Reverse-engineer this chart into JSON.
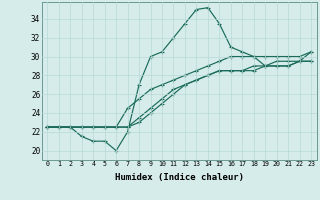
{
  "xlabel": "Humidex (Indice chaleur)",
  "bg_color": "#d5ecea",
  "line_color": "#1a6b5a",
  "grid_color": "#b8d8d5",
  "xlim": [
    -0.5,
    23.5
  ],
  "ylim": [
    19.0,
    35.8
  ],
  "xticks": [
    0,
    1,
    2,
    3,
    4,
    5,
    6,
    7,
    8,
    9,
    10,
    11,
    12,
    13,
    14,
    15,
    16,
    17,
    18,
    19,
    20,
    21,
    22,
    23
  ],
  "yticks": [
    20,
    22,
    24,
    26,
    28,
    30,
    32,
    34
  ],
  "x_vals": [
    0,
    1,
    2,
    3,
    4,
    5,
    6,
    7,
    8,
    9,
    10,
    11,
    12,
    13,
    14,
    15,
    16,
    17,
    18,
    19,
    20,
    21,
    22,
    23
  ],
  "y_line1": [
    22.5,
    22.5,
    22.5,
    21.5,
    21.0,
    21.0,
    20.0,
    22.0,
    27.0,
    30.0,
    30.5,
    32.0,
    33.5,
    35.0,
    35.2,
    33.5,
    31.0,
    30.5,
    30.0,
    29.0,
    29.0,
    29.0,
    29.5,
    30.5
  ],
  "y_line2": [
    22.5,
    22.5,
    22.5,
    22.5,
    22.5,
    22.5,
    22.5,
    24.5,
    25.5,
    26.5,
    27.0,
    27.5,
    28.0,
    28.5,
    29.0,
    29.5,
    30.0,
    30.0,
    30.0,
    30.0,
    30.0,
    30.0,
    30.0,
    30.5
  ],
  "y_line3": [
    22.5,
    22.5,
    22.5,
    22.5,
    22.5,
    22.5,
    22.5,
    22.5,
    23.5,
    24.5,
    25.5,
    26.5,
    27.0,
    27.5,
    28.0,
    28.5,
    28.5,
    28.5,
    29.0,
    29.0,
    29.5,
    29.5,
    29.5,
    29.5
  ],
  "y_line4": [
    22.5,
    22.5,
    22.5,
    22.5,
    22.5,
    22.5,
    22.5,
    22.5,
    23.0,
    24.0,
    25.0,
    26.0,
    27.0,
    27.5,
    28.0,
    28.5,
    28.5,
    28.5,
    28.5,
    29.0,
    29.0,
    29.0,
    29.5,
    29.5
  ]
}
